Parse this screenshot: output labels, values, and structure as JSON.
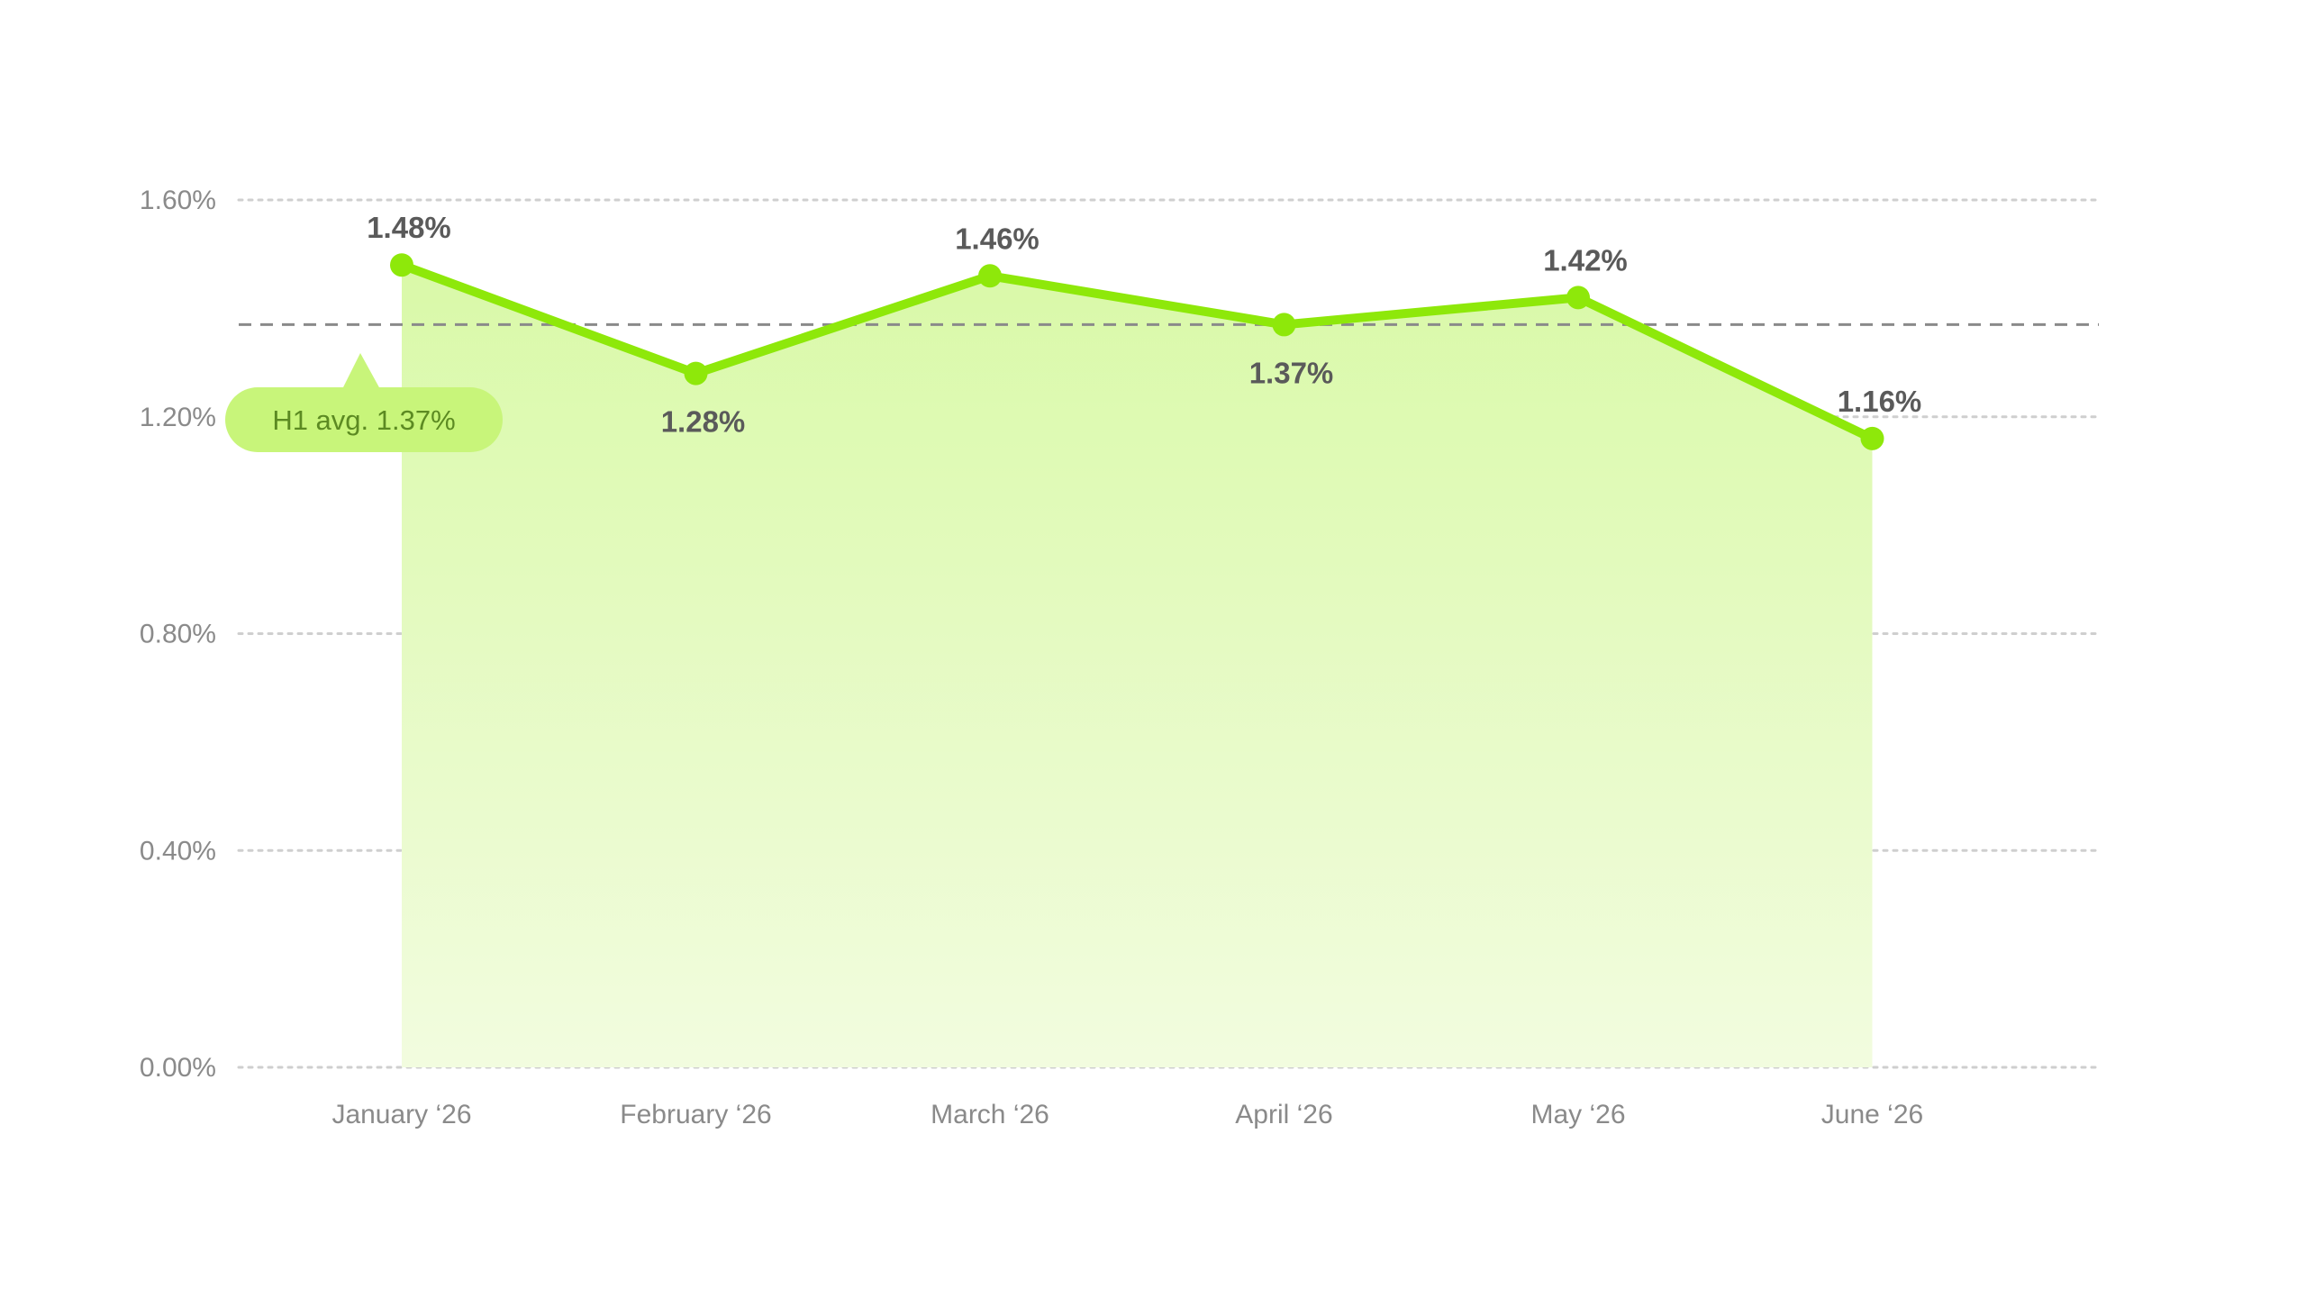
{
  "colors": {
    "line": "#8ee80a",
    "area_top": "#d9f9a8",
    "area_bottom": "#f2fcdf",
    "grid": "#cfcfcf",
    "reference_line": "#8a8a8a",
    "badge_bg": "#c8f57a",
    "badge_text": "#5c8a22",
    "label_text": "#5a5a5a",
    "tick_text": "#8a8a8a"
  },
  "chart_data": {
    "type": "area",
    "categories": [
      "January ‘26",
      "February ‘26",
      "March ‘26",
      "April ‘26",
      "May ‘26",
      "June ‘26"
    ],
    "series": [
      {
        "values": [
          1.48,
          1.28,
          1.46,
          1.37,
          1.42,
          1.16
        ],
        "labels": [
          "1.48%",
          "1.28%",
          "1.46%",
          "1.37%",
          "1.42%",
          "1.16%"
        ]
      }
    ],
    "y_ticks": [
      0,
      0.4,
      0.8,
      1.2,
      1.6
    ],
    "y_tick_labels": [
      "0.00%",
      "0.40%",
      "0.80%",
      "1.20%",
      "1.60%"
    ],
    "ylim": [
      0,
      1.6
    ],
    "grid": true,
    "reference_line": {
      "value": 1.37,
      "label": "H1 avg. 1.37%"
    },
    "title": "",
    "xlabel": "",
    "ylabel": ""
  }
}
